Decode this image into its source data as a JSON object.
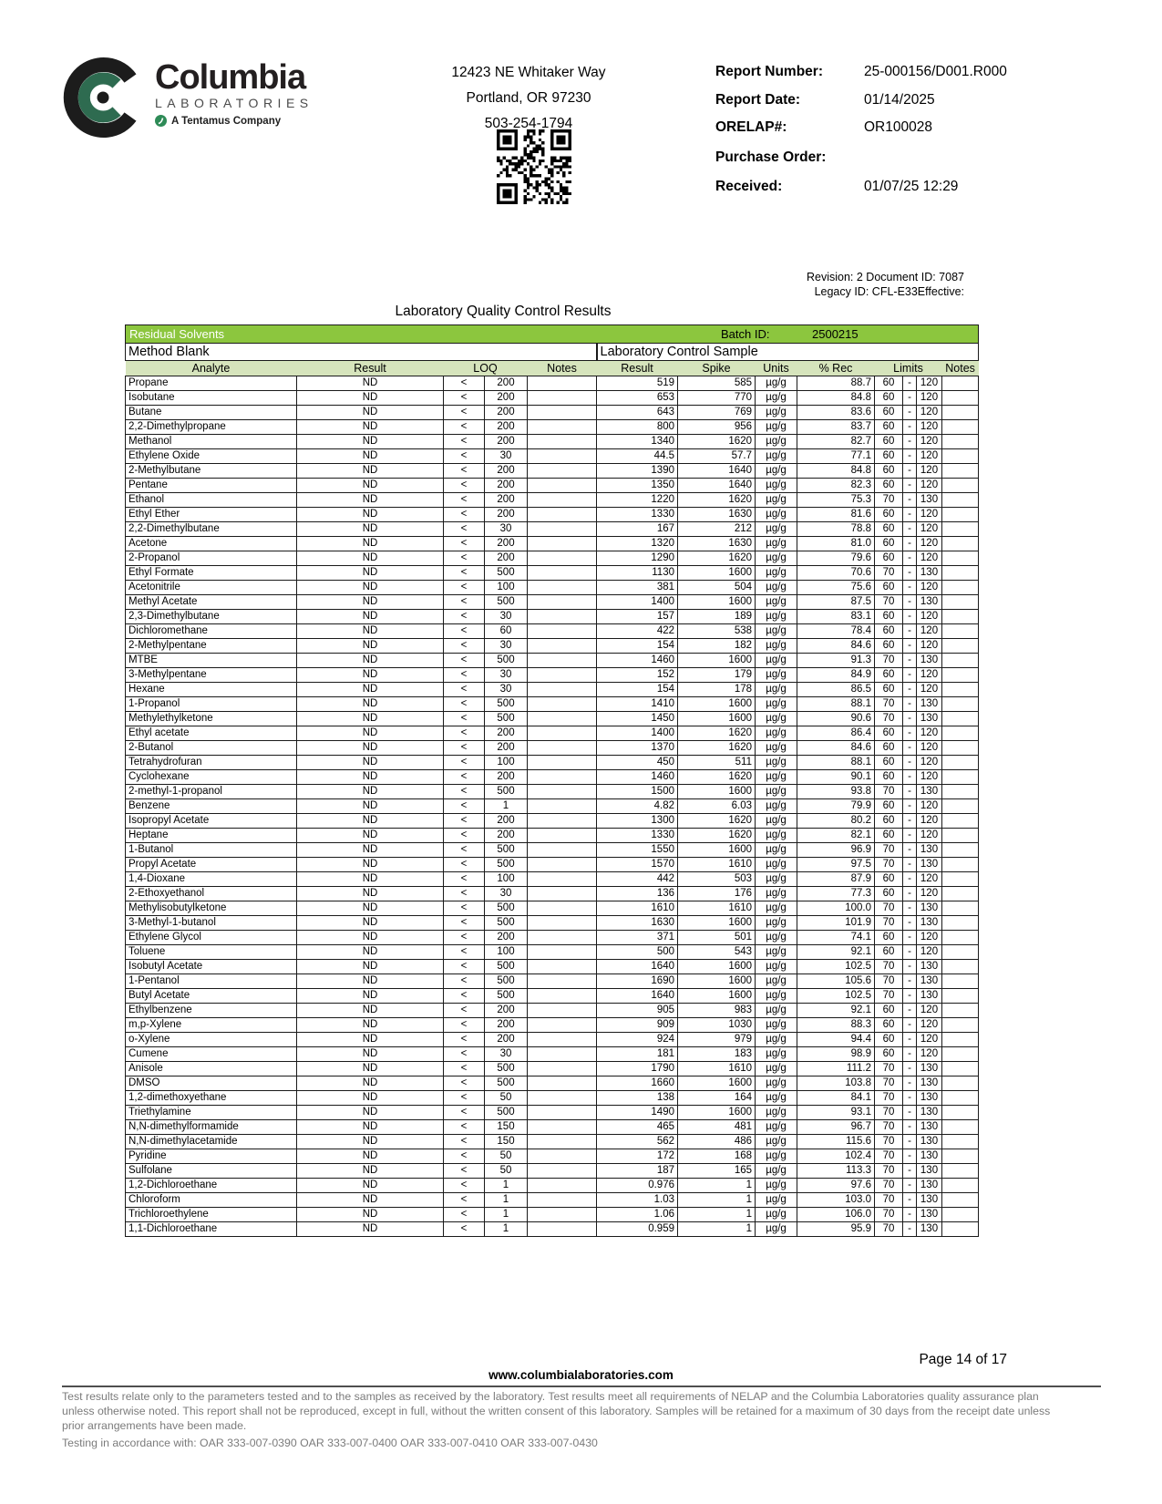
{
  "header": {
    "logo": {
      "brand": "Columbia",
      "sub": "LABORATORIES",
      "tagline": "A Tentamus Company"
    },
    "address_lines": [
      "12423 NE Whitaker Way",
      "Portland, OR 97230",
      "503-254-1794"
    ],
    "report_fields": [
      {
        "label": "Report Number:",
        "value": "25-000156/D001.R000"
      },
      {
        "label": "Report Date:",
        "value": "01/14/2025"
      },
      {
        "label": "ORELAP#:",
        "value": "OR100028"
      },
      {
        "label": "Purchase Order:",
        "value": ""
      },
      {
        "label": "Received:",
        "value": "01/07/25  12:29"
      }
    ]
  },
  "doc_meta": {
    "revision_line": "Revision: 2 Document ID: 7087",
    "legacy_line": "Legacy ID: CFL-E33Effective:"
  },
  "title": "Laboratory Quality Control Results",
  "qc_table": {
    "section": "Residual Solvents",
    "batch_label": "Batch ID:",
    "batch_id": "2500215",
    "group_headers": {
      "method_blank": "Method Blank",
      "lcs": "Laboratory Control Sample"
    },
    "columns": {
      "analyte": "Analyte",
      "result": "Result",
      "loq": "LOQ",
      "notes": "Notes",
      "lcs_result": "Result",
      "spike": "Spike",
      "units": "Units",
      "pct_rec": "% Rec",
      "limits": "Limits",
      "lcs_notes": "Notes"
    },
    "mb_result": "ND",
    "lt_symbol": "<",
    "units_value": "µg/g",
    "limits_separator": "-",
    "rows": [
      [
        "Propane",
        "200",
        "519",
        "585",
        "88.7",
        "60",
        "120"
      ],
      [
        "Isobutane",
        "200",
        "653",
        "770",
        "84.8",
        "60",
        "120"
      ],
      [
        "Butane",
        "200",
        "643",
        "769",
        "83.6",
        "60",
        "120"
      ],
      [
        "2,2-Dimethylpropane",
        "200",
        "800",
        "956",
        "83.7",
        "60",
        "120"
      ],
      [
        "Methanol",
        "200",
        "1340",
        "1620",
        "82.7",
        "60",
        "120"
      ],
      [
        "Ethylene Oxide",
        "30",
        "44.5",
        "57.7",
        "77.1",
        "60",
        "120"
      ],
      [
        "2-Methylbutane",
        "200",
        "1390",
        "1640",
        "84.8",
        "60",
        "120"
      ],
      [
        "Pentane",
        "200",
        "1350",
        "1640",
        "82.3",
        "60",
        "120"
      ],
      [
        "Ethanol",
        "200",
        "1220",
        "1620",
        "75.3",
        "70",
        "130"
      ],
      [
        "Ethyl Ether",
        "200",
        "1330",
        "1630",
        "81.6",
        "60",
        "120"
      ],
      [
        "2,2-Dimethylbutane",
        "30",
        "167",
        "212",
        "78.8",
        "60",
        "120"
      ],
      [
        "Acetone",
        "200",
        "1320",
        "1630",
        "81.0",
        "60",
        "120"
      ],
      [
        "2-Propanol",
        "200",
        "1290",
        "1620",
        "79.6",
        "60",
        "120"
      ],
      [
        "Ethyl Formate",
        "500",
        "1130",
        "1600",
        "70.6",
        "70",
        "130"
      ],
      [
        "Acetonitrile",
        "100",
        "381",
        "504",
        "75.6",
        "60",
        "120"
      ],
      [
        "Methyl Acetate",
        "500",
        "1400",
        "1600",
        "87.5",
        "70",
        "130"
      ],
      [
        "2,3-Dimethylbutane",
        "30",
        "157",
        "189",
        "83.1",
        "60",
        "120"
      ],
      [
        "Dichloromethane",
        "60",
        "422",
        "538",
        "78.4",
        "60",
        "120"
      ],
      [
        "2-Methylpentane",
        "30",
        "154",
        "182",
        "84.6",
        "60",
        "120"
      ],
      [
        "MTBE",
        "500",
        "1460",
        "1600",
        "91.3",
        "70",
        "130"
      ],
      [
        "3-Methylpentane",
        "30",
        "152",
        "179",
        "84.9",
        "60",
        "120"
      ],
      [
        "Hexane",
        "30",
        "154",
        "178",
        "86.5",
        "60",
        "120"
      ],
      [
        "1-Propanol",
        "500",
        "1410",
        "1600",
        "88.1",
        "70",
        "130"
      ],
      [
        "Methylethylketone",
        "500",
        "1450",
        "1600",
        "90.6",
        "70",
        "130"
      ],
      [
        "Ethyl acetate",
        "200",
        "1400",
        "1620",
        "86.4",
        "60",
        "120"
      ],
      [
        "2-Butanol",
        "200",
        "1370",
        "1620",
        "84.6",
        "60",
        "120"
      ],
      [
        "Tetrahydrofuran",
        "100",
        "450",
        "511",
        "88.1",
        "60",
        "120"
      ],
      [
        "Cyclohexane",
        "200",
        "1460",
        "1620",
        "90.1",
        "60",
        "120"
      ],
      [
        "2-methyl-1-propanol",
        "500",
        "1500",
        "1600",
        "93.8",
        "70",
        "130"
      ],
      [
        "Benzene",
        "1",
        "4.82",
        "6.03",
        "79.9",
        "60",
        "120"
      ],
      [
        "Isopropyl Acetate",
        "200",
        "1300",
        "1620",
        "80.2",
        "60",
        "120"
      ],
      [
        "Heptane",
        "200",
        "1330",
        "1620",
        "82.1",
        "60",
        "120"
      ],
      [
        "1-Butanol",
        "500",
        "1550",
        "1600",
        "96.9",
        "70",
        "130"
      ],
      [
        "Propyl Acetate",
        "500",
        "1570",
        "1610",
        "97.5",
        "70",
        "130"
      ],
      [
        "1,4-Dioxane",
        "100",
        "442",
        "503",
        "87.9",
        "60",
        "120"
      ],
      [
        "2-Ethoxyethanol",
        "30",
        "136",
        "176",
        "77.3",
        "60",
        "120"
      ],
      [
        "Methylisobutylketone",
        "500",
        "1610",
        "1610",
        "100.0",
        "70",
        "130"
      ],
      [
        "3-Methyl-1-butanol",
        "500",
        "1630",
        "1600",
        "101.9",
        "70",
        "130"
      ],
      [
        "Ethylene Glycol",
        "200",
        "371",
        "501",
        "74.1",
        "60",
        "120"
      ],
      [
        "Toluene",
        "100",
        "500",
        "543",
        "92.1",
        "60",
        "120"
      ],
      [
        "Isobutyl Acetate",
        "500",
        "1640",
        "1600",
        "102.5",
        "70",
        "130"
      ],
      [
        "1-Pentanol",
        "500",
        "1690",
        "1600",
        "105.6",
        "70",
        "130"
      ],
      [
        "Butyl Acetate",
        "500",
        "1640",
        "1600",
        "102.5",
        "70",
        "130"
      ],
      [
        "Ethylbenzene",
        "200",
        "905",
        "983",
        "92.1",
        "60",
        "120"
      ],
      [
        "m,p-Xylene",
        "200",
        "909",
        "1030",
        "88.3",
        "60",
        "120"
      ],
      [
        "o-Xylene",
        "200",
        "924",
        "979",
        "94.4",
        "60",
        "120"
      ],
      [
        "Cumene",
        "30",
        "181",
        "183",
        "98.9",
        "60",
        "120"
      ],
      [
        "Anisole",
        "500",
        "1790",
        "1610",
        "111.2",
        "70",
        "130"
      ],
      [
        "DMSO",
        "500",
        "1660",
        "1600",
        "103.8",
        "70",
        "130"
      ],
      [
        "1,2-dimethoxyethane",
        "50",
        "138",
        "164",
        "84.1",
        "70",
        "130"
      ],
      [
        "Triethylamine",
        "500",
        "1490",
        "1600",
        "93.1",
        "70",
        "130"
      ],
      [
        "N,N-dimethylformamide",
        "150",
        "465",
        "481",
        "96.7",
        "70",
        "130"
      ],
      [
        "N,N-dimethylacetamide",
        "150",
        "562",
        "486",
        "115.6",
        "70",
        "130"
      ],
      [
        "Pyridine",
        "50",
        "172",
        "168",
        "102.4",
        "70",
        "130"
      ],
      [
        "Sulfolane",
        "50",
        "187",
        "165",
        "113.3",
        "70",
        "130"
      ],
      [
        "1,2-Dichloroethane",
        "1",
        "0.976",
        "1",
        "97.6",
        "70",
        "130"
      ],
      [
        "Chloroform",
        "1",
        "1.03",
        "1",
        "103.0",
        "70",
        "130"
      ],
      [
        "Trichloroethylene",
        "1",
        "1.06",
        "1",
        "106.0",
        "70",
        "130"
      ],
      [
        "1,1-Dichloroethane",
        "1",
        "0.959",
        "1",
        "95.9",
        "70",
        "130"
      ]
    ]
  },
  "footer": {
    "page_label": "Page 14 of 17",
    "website": "www.columbialaboratories.com",
    "disclaimer_lines": [
      "Test results relate only to the parameters tested and to the samples as received by the laboratory. Test results meet all requirements of NELAP and the Columbia Laboratories quality assurance plan",
      "unless otherwise noted. This report shall not be reproduced, except in full, without the written consent of this laboratory. Samples will be retained for a maximum of 30 days from the receipt date unless",
      "prior arrangements have been made."
    ],
    "accordance_line": "Testing in accordance with: OAR 333-007-0390 OAR 333-007-0400 OAR 333-007-0410  OAR 333-007-0430"
  }
}
